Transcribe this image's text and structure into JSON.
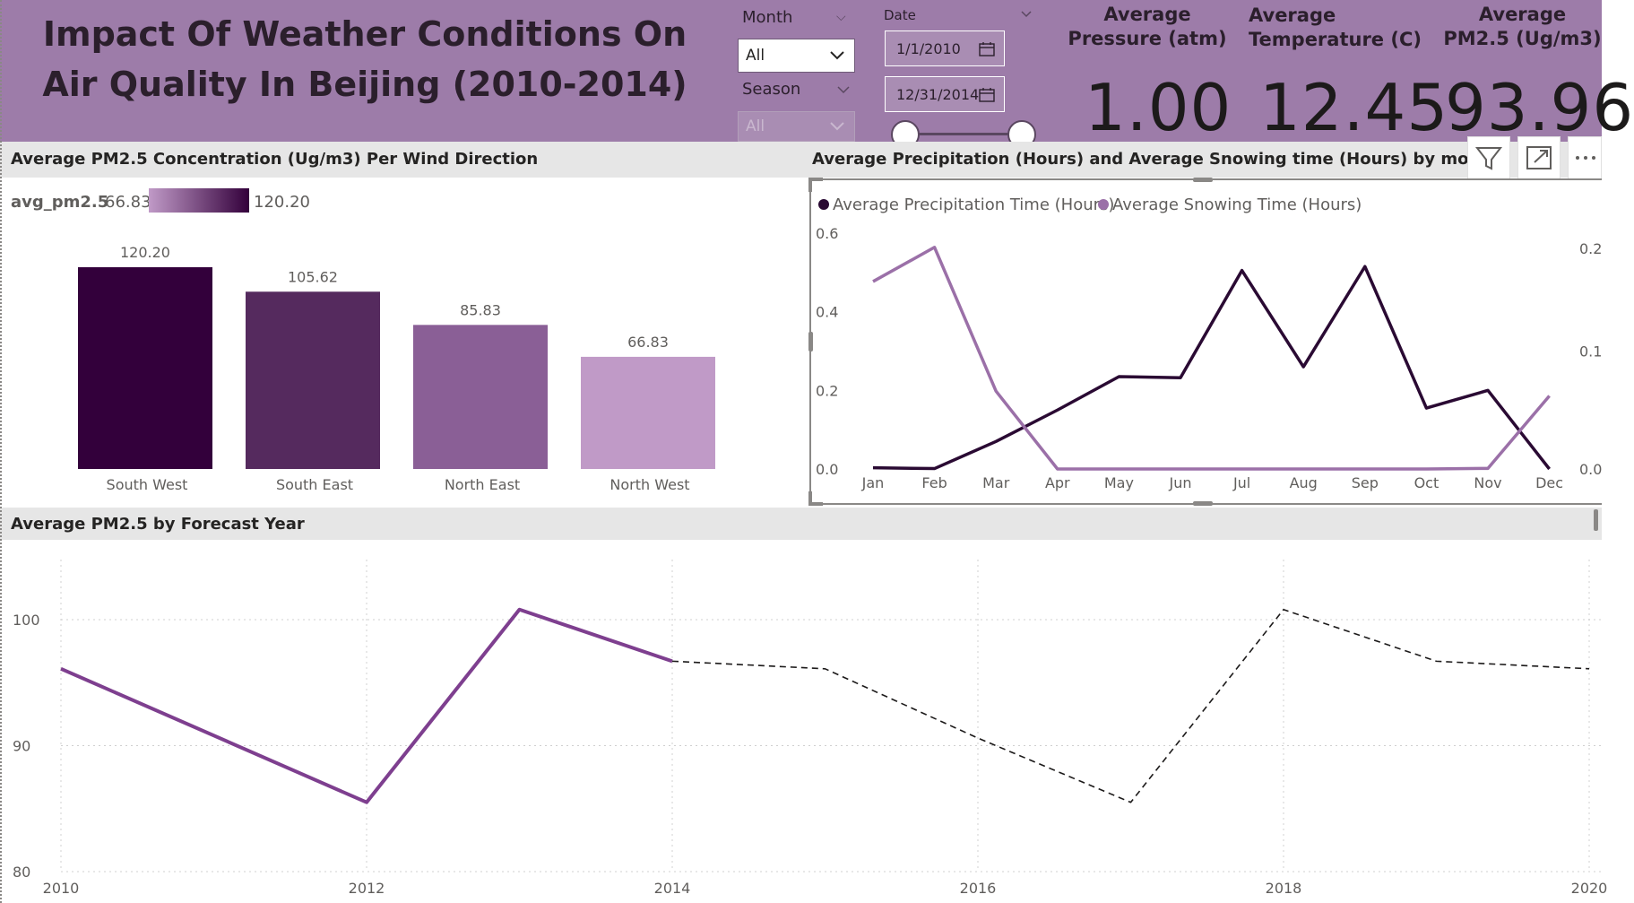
{
  "header": {
    "title": "Impact Of Weather Conditions On Air Quality In Beijing (2010-2014)",
    "slicers": {
      "month": {
        "label": "Month",
        "value": "All"
      },
      "season": {
        "label": "Season",
        "value": "All"
      },
      "date": {
        "label": "Date",
        "start": "1/1/2010",
        "end": "12/31/2014"
      }
    },
    "kpis": [
      {
        "label": "Average Pressure (atm)",
        "value": "1.00"
      },
      {
        "label": "Average Temperature (C)",
        "value": "12.45"
      },
      {
        "label": "Average PM2.5 (Ug/m3)",
        "value": "93.96"
      }
    ]
  },
  "visuals": {
    "wind": {
      "title": "Average PM2.5 Concentration (Ug/m3) Per Wind Direction"
    },
    "precip": {
      "title": "Average  Precipitation (Hours) and Average Snowing time (Hours) by month"
    },
    "forecast": {
      "title": "Average PM2.5 by Forecast Year"
    }
  },
  "colors": {
    "header_bg": "#9d7ca9",
    "dark_plum": "#33003b",
    "mid_plum": "#552a5e",
    "light_plum": "#c09ac7",
    "line_purple": "#7e3f8f"
  },
  "icons": [
    "calendar-icon",
    "chevron-down-icon",
    "filter-icon",
    "focus-mode-icon",
    "more-options-icon"
  ],
  "chart_data": [
    {
      "type": "bar",
      "categories": [
        "South West",
        "South East",
        "North East",
        "North West"
      ],
      "values": [
        120.2,
        105.62,
        85.83,
        66.83
      ],
      "data_labels": [
        "120.20",
        "105.62",
        "85.83",
        "66.83"
      ],
      "colors": [
        "#33003b",
        "#552a5e",
        "#8a5f96",
        "#c09ac7"
      ],
      "legend": {
        "field": "avg_pm2.5",
        "min_label": "66.83",
        "max_label": "120.20"
      },
      "ylim": [
        0,
        120.2
      ]
    },
    {
      "type": "line",
      "categories": [
        "Jan",
        "Feb",
        "Mar",
        "Apr",
        "May",
        "Jun",
        "Jul",
        "Aug",
        "Sep",
        "Oct",
        "Nov",
        "Dec"
      ],
      "series": [
        {
          "name": "Average Precipitation Time (Hours)",
          "axis": "left",
          "color": "#2a0a33",
          "values": [
            0.003,
            0.001,
            0.07,
            0.15,
            0.235,
            0.232,
            0.505,
            0.26,
            0.515,
            0.155,
            0.2,
            0.0
          ]
        },
        {
          "name": "Average Snowing Time (Hours)",
          "axis": "right",
          "color": "#9b70a8",
          "values": [
            0.159,
            0.188,
            0.066,
            0.0,
            0.0,
            0.0,
            0.0,
            0.0,
            0.0,
            0.0,
            0.0005,
            0.062
          ]
        }
      ],
      "y_left": {
        "ylim": [
          0,
          0.6
        ],
        "ticks": [
          "0.0",
          "0.2",
          "0.4",
          "0.6"
        ]
      },
      "y_right": {
        "ticks": [
          "0.0",
          "0.1",
          "0.2"
        ],
        "ylim": [
          0,
          0.2
        ]
      }
    },
    {
      "type": "line",
      "x": [
        2010,
        2011,
        2012,
        2013,
        2014,
        2015,
        2016,
        2017,
        2018,
        2019,
        2020
      ],
      "series": [
        {
          "kind": "actual",
          "x": [
            2010,
            2012,
            2013,
            2014
          ],
          "values": [
            96.1,
            85.5,
            100.8,
            96.7
          ],
          "color": "#7e3f8f"
        },
        {
          "kind": "forecast",
          "x": [
            2014,
            2015,
            2016,
            2017,
            2018,
            2019,
            2020
          ],
          "values": [
            96.7,
            96.1,
            90.6,
            85.5,
            100.8,
            96.7,
            96.1
          ],
          "color": "#1c1a1a"
        }
      ],
      "xticks": [
        "2010",
        "2012",
        "2014",
        "2016",
        "2018",
        "2020"
      ],
      "yticks": [
        "80",
        "90",
        "100"
      ],
      "xlim": [
        2010,
        2020
      ],
      "ylim": [
        80,
        106
      ]
    }
  ]
}
